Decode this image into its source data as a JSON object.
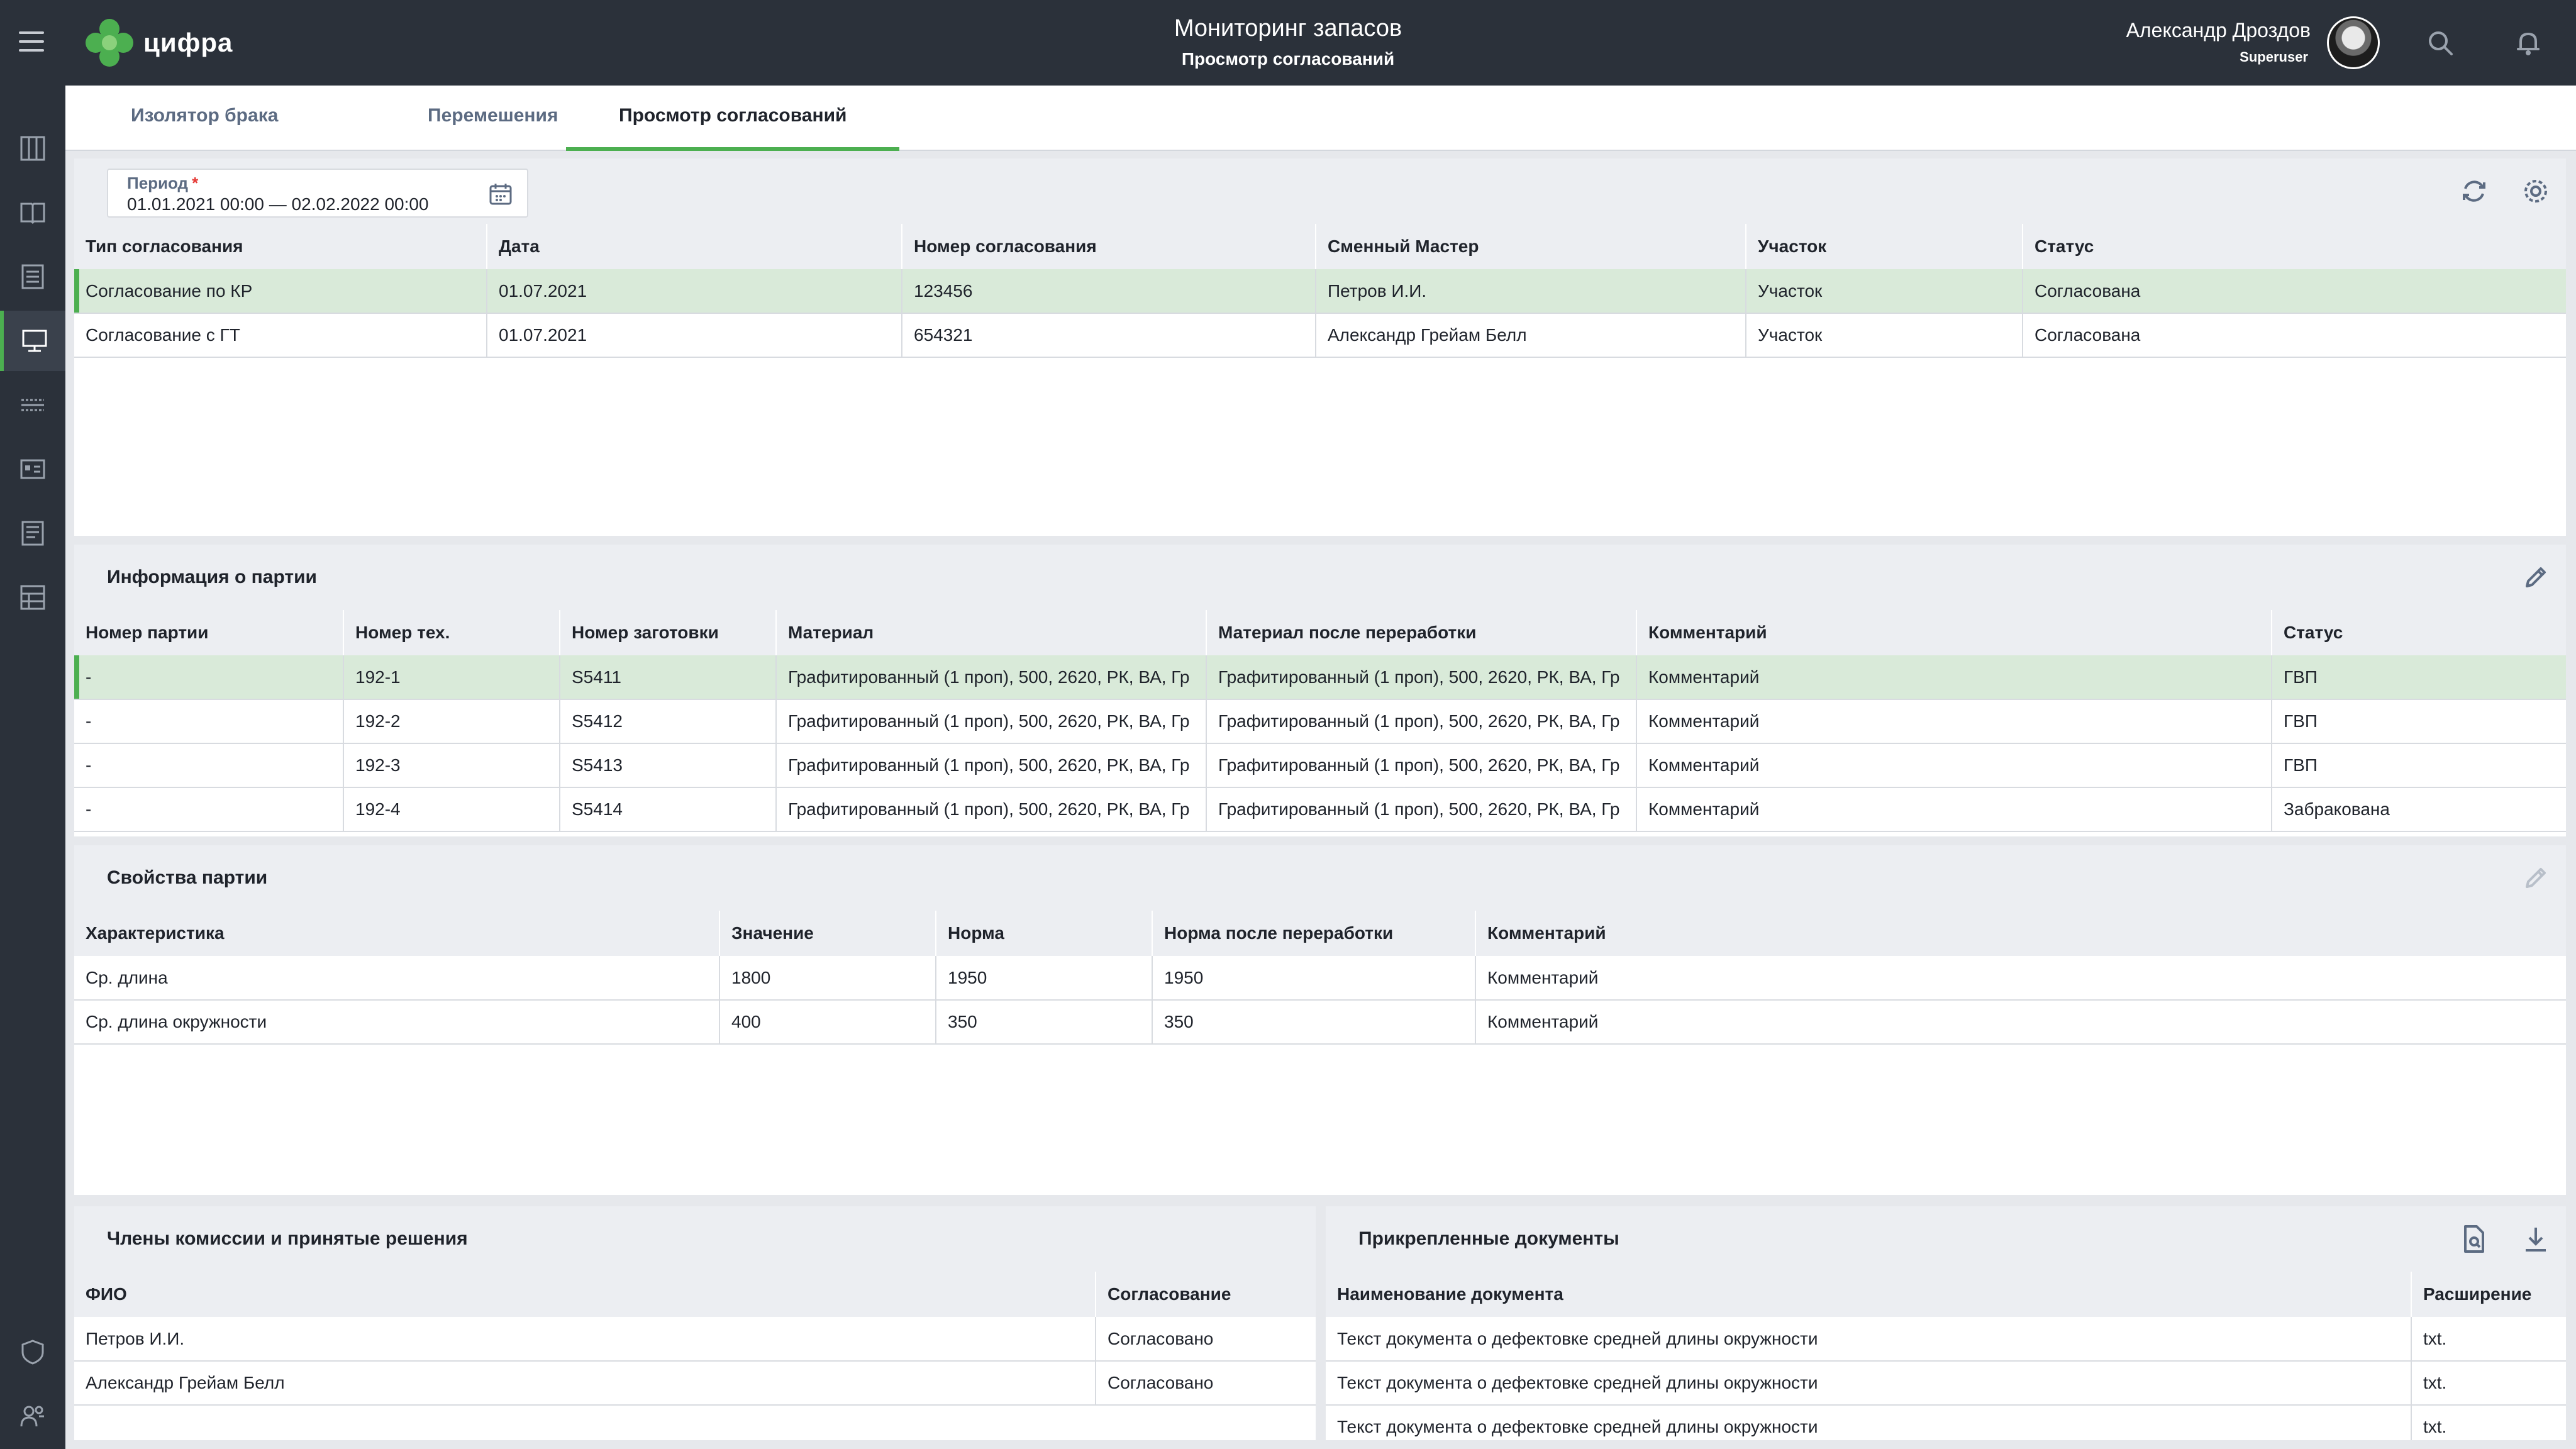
{
  "app": {
    "logo_text": "цифра",
    "title": "Мониторинг запасов",
    "subtitle": "Просмотр согласований",
    "user_name": "Александр Дроздов",
    "user_role": "Superuser"
  },
  "colors": {
    "accent": "#4caf50",
    "topbar": "#2b313a",
    "selected_row": "#d9ead9",
    "required": "#e53935"
  },
  "tabs": [
    {
      "label": "Изолятор брака"
    },
    {
      "label": "Перемешения"
    },
    {
      "label": "Просмотр согласований"
    }
  ],
  "filter": {
    "period_label": "Период",
    "period_required": "*",
    "period_value": "01.01.2021 00:00 — 02.02.2022 00:00"
  },
  "approvals": {
    "columns": [
      "Тип согласования",
      "Дата",
      "Номер согласования",
      "Сменный Мастер",
      "Участок",
      "Статус"
    ],
    "rows": [
      [
        "Согласование по КР",
        "01.07.2021",
        "123456",
        "Петров И.И.",
        "Участок",
        "Согласована"
      ],
      [
        "Согласование с ГТ",
        "01.07.2021",
        "654321",
        "Александр Грейам Белл",
        "Участок",
        "Согласована"
      ]
    ]
  },
  "batch_info": {
    "title": "Информация о партии",
    "columns": [
      "Номер партии",
      "Номер тех.",
      "Номер заготовки",
      "Материал",
      "Материал после переработки",
      "Комментарий",
      "Статус"
    ],
    "rows": [
      [
        "-",
        "192-1",
        "S5411",
        "Графитированный (1 проп), 500, 2620, РК, ВА, Гр",
        "Графитированный (1 проп), 500, 2620, РК, ВА, Гр",
        "Комментарий",
        "ГВП"
      ],
      [
        "-",
        "192-2",
        "S5412",
        "Графитированный (1 проп), 500, 2620, РК, ВА, Гр",
        "Графитированный (1 проп), 500, 2620, РК, ВА, Гр",
        "Комментарий",
        "ГВП"
      ],
      [
        "-",
        "192-3",
        "S5413",
        "Графитированный (1 проп), 500, 2620, РК, ВА, Гр",
        "Графитированный (1 проп), 500, 2620, РК, ВА, Гр",
        "Комментарий",
        "ГВП"
      ],
      [
        "-",
        "192-4",
        "S5414",
        "Графитированный (1 проп), 500, 2620, РК, ВА, Гр",
        "Графитированный (1 проп), 500, 2620, РК, ВА, Гр",
        "Комментарий",
        "Забракована"
      ]
    ]
  },
  "batch_props": {
    "title": "Свойства партии",
    "columns": [
      "Характеристика",
      "Значение",
      "Норма",
      "Норма после переработки",
      "Комментарий"
    ],
    "rows": [
      [
        "Ср. длина",
        "1800",
        "1950",
        "1950",
        "Комментарий"
      ],
      [
        "Ср. длина окружности",
        "400",
        "350",
        "350",
        "Комментарий"
      ]
    ]
  },
  "commission": {
    "title": "Члены комиссии и принятые решения",
    "columns": [
      "ФИО",
      "Согласование"
    ],
    "rows": [
      [
        "Петров И.И.",
        "Согласовано"
      ],
      [
        "Александр Грейам Белл",
        "Согласовано"
      ]
    ]
  },
  "documents": {
    "title": "Прикрепленные документы",
    "columns": [
      "Наименование документа",
      "Расширение"
    ],
    "rows": [
      [
        "Текст документа о дефектовке средней длины окружности",
        "txt."
      ],
      [
        "Текст документа о дефектовке средней длины окружности",
        "txt."
      ],
      [
        "Текст документа о дефектовке средней длины окружности",
        "txt."
      ]
    ]
  }
}
